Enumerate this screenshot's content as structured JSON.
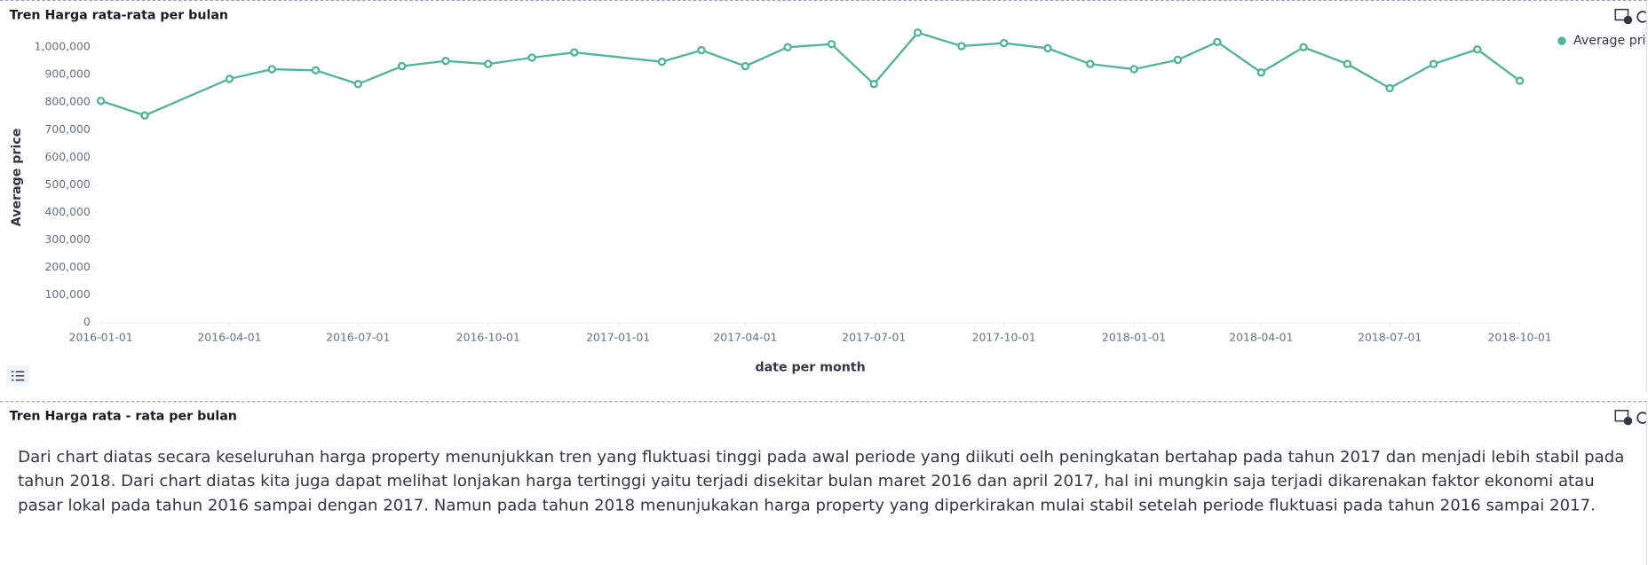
{
  "chart_data": {
    "type": "line",
    "title": "Tren Harga rata-rata per bulan",
    "x_label": "date per month",
    "y_label": "Average price",
    "x": [
      "2016-01-01",
      "2016-02-01",
      "2016-04-01",
      "2016-05-01",
      "2016-06-01",
      "2016-07-01",
      "2016-08-01",
      "2016-09-01",
      "2016-10-01",
      "2016-11-01",
      "2016-12-01",
      "2017-02-01",
      "2017-03-01",
      "2017-04-01",
      "2017-05-01",
      "2017-06-01",
      "2017-07-01",
      "2017-08-01",
      "2017-09-01",
      "2017-10-01",
      "2017-11-01",
      "2017-12-01",
      "2018-01-01",
      "2018-02-01",
      "2018-03-01",
      "2018-04-01",
      "2018-05-01",
      "2018-06-01",
      "2018-07-01",
      "2018-08-01",
      "2018-09-01",
      "2018-10-01"
    ],
    "series": [
      {
        "name": "Average price",
        "color": "#54b399",
        "values": [
          805000,
          752000,
          885000,
          920000,
          916000,
          866000,
          931000,
          950000,
          939000,
          962000,
          981000,
          947000,
          989000,
          931000,
          1000000,
          1011000,
          866000,
          1053000,
          1004000,
          1015000,
          996000,
          939000,
          920000,
          954000,
          1019000,
          908000,
          1000000,
          939000,
          851000,
          939000,
          992000,
          878000
        ]
      }
    ],
    "xlim": [
      "2016-01-01",
      "2018-10-01"
    ],
    "xticks": [
      "2016-01-01",
      "2016-04-01",
      "2016-07-01",
      "2016-10-01",
      "2017-01-01",
      "2017-04-01",
      "2017-07-01",
      "2017-10-01",
      "2018-01-01",
      "2018-04-01",
      "2018-07-01",
      "2018-10-01"
    ],
    "ylim": [
      0,
      1080000
    ],
    "yticks": [
      0,
      {
        "value": 100000,
        "label": "100,000"
      },
      {
        "value": 200000,
        "label": "200,000"
      },
      {
        "value": 300000,
        "label": "300,000"
      },
      {
        "value": 400000,
        "label": "400,000"
      },
      {
        "value": 500000,
        "label": "500,000"
      },
      {
        "value": 600000,
        "label": "600,000"
      },
      {
        "value": 700000,
        "label": "700,000"
      },
      {
        "value": 800000,
        "label": "800,000"
      },
      {
        "value": 900000,
        "label": "900,000"
      },
      {
        "value": 1000000,
        "label": "1,000,000"
      }
    ],
    "grid": false,
    "legend": "top-right"
  },
  "markdown_panel": {
    "title": "Tren Harga rata - rata per bulan",
    "text": "Dari chart diatas secara keseluruhan harga property menunjukkan tren yang fluktuasi tinggi pada awal periode yang diikuti oelh peningkatan bertahap pada tahun 2017 dan menjadi lebih stabil pada tahun 2018. Dari chart diatas kita juga dapat melihat lonjakan harga tertinggi yaitu terjadi disekitar bulan maret 2016 dan april 2017, hal ini mungkin saja terjadi dikarenakan faktor ekonomi atau pasar lokal pada tahun 2016 sampai dengan 2017. Namun pada tahun 2018 menunjukakan harga property yang diperkirakan mulai stabil setelah periode fluktuasi pada tahun 2016 sampai 2017."
  }
}
